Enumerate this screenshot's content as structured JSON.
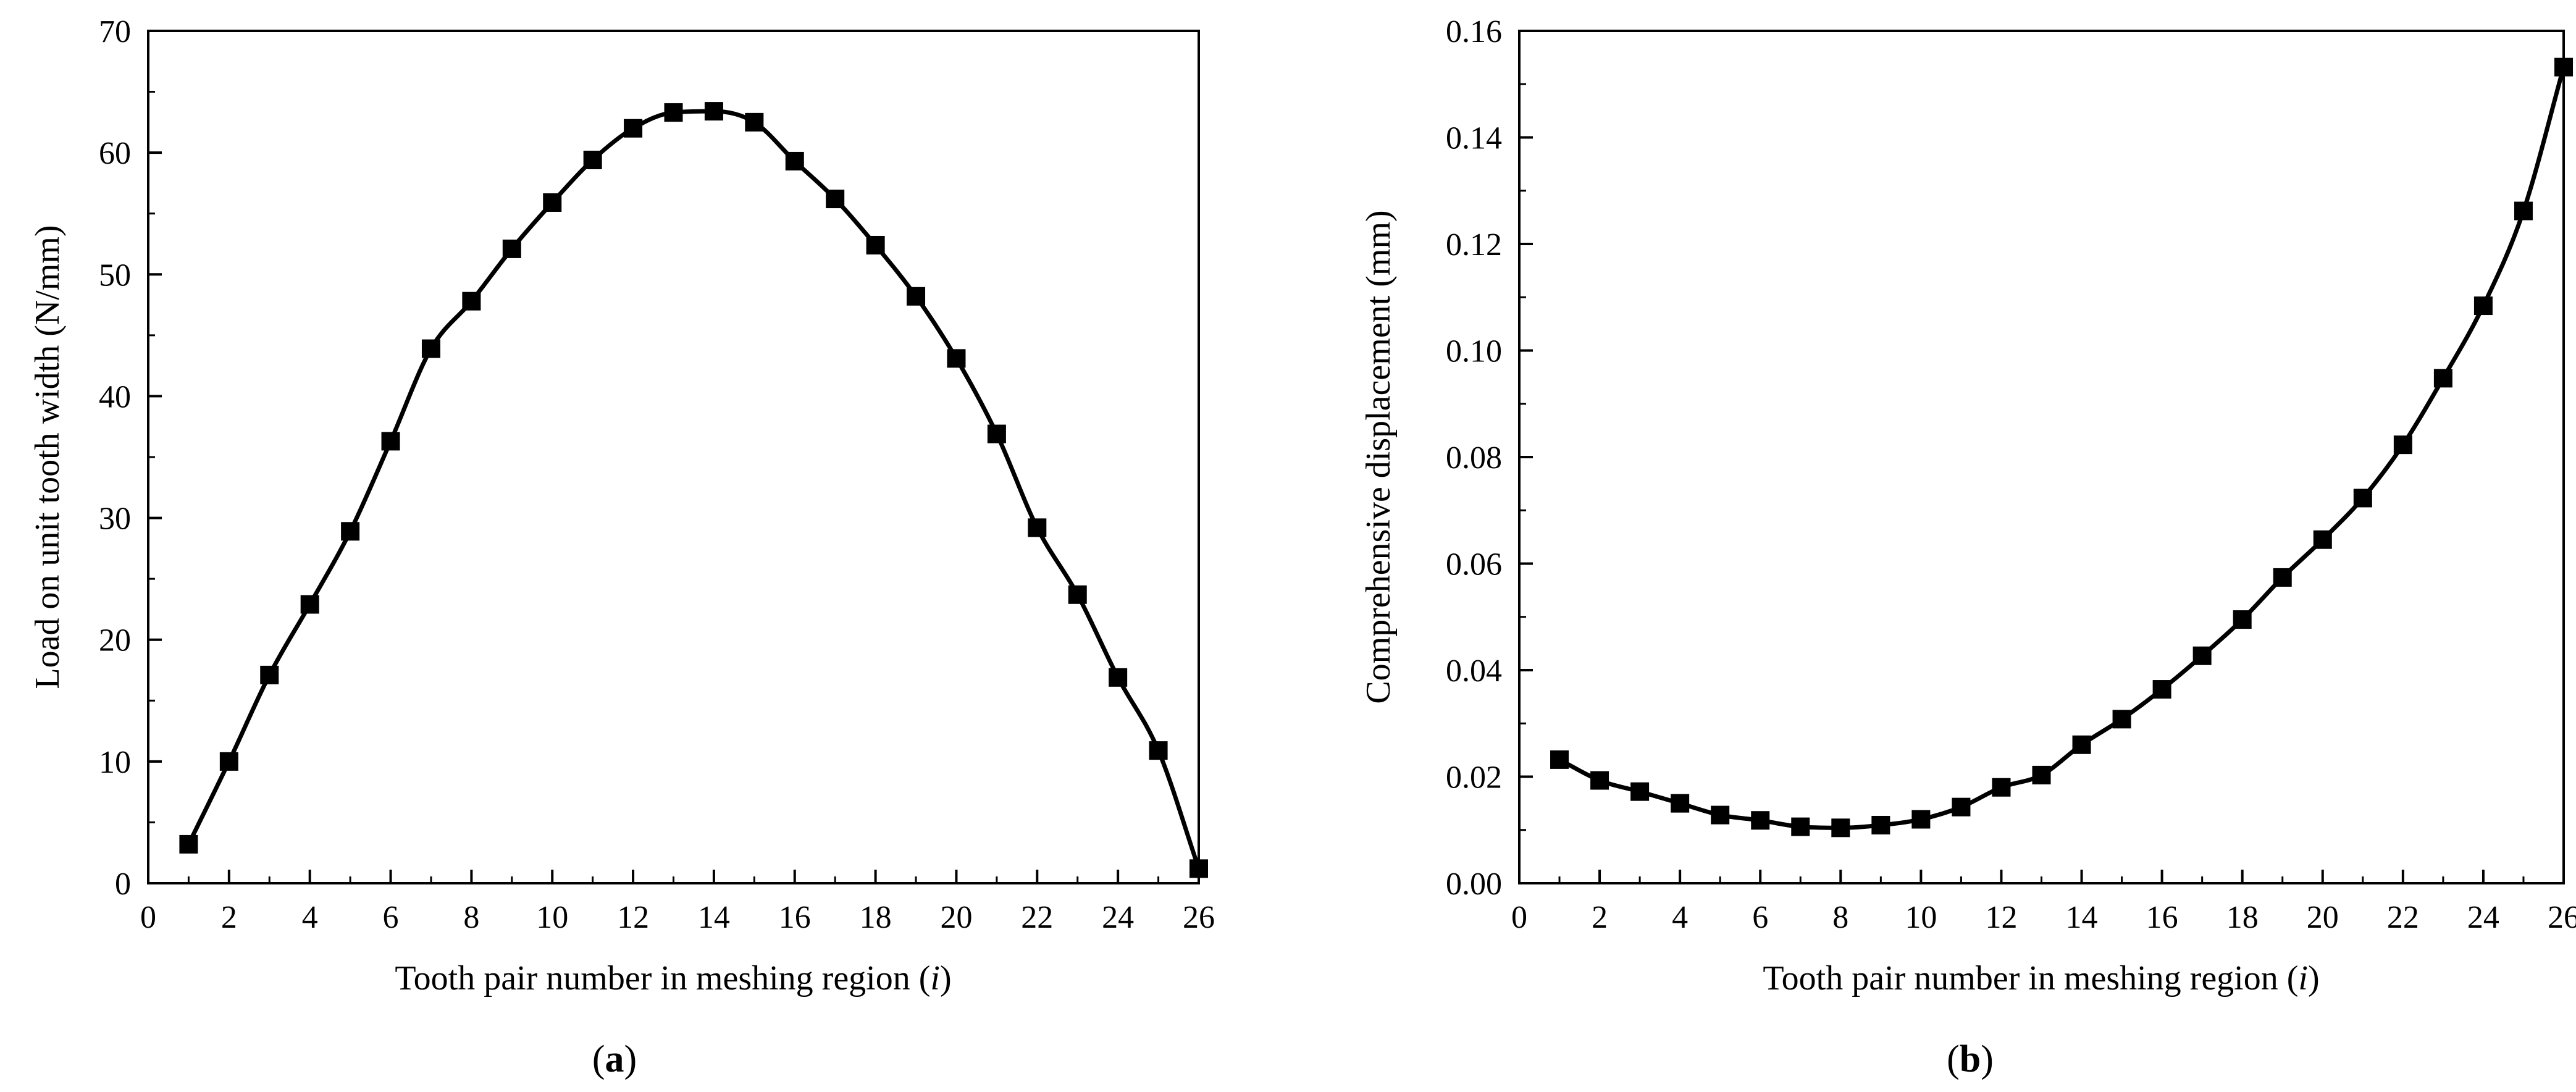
{
  "chart_data": [
    {
      "type": "line",
      "panel_label": "a",
      "title": "",
      "xlabel": "Tooth pair number in meshing region (",
      "xlabel_var": "i",
      "xlabel_end": ")",
      "ylabel": "Load on unit tooth width (N/mm)",
      "xlim": [
        0,
        26
      ],
      "ylim": [
        0,
        70
      ],
      "xticks": [
        "0",
        "2",
        "4",
        "6",
        "8",
        "10",
        "12",
        "14",
        "16",
        "18",
        "20",
        "22",
        "24",
        "26"
      ],
      "yticks": [
        "0",
        "10",
        "20",
        "30",
        "40",
        "50",
        "60",
        "70"
      ],
      "grid": false,
      "series": [
        {
          "name": "Load",
          "marker": "square",
          "x": [
            1,
            2,
            3,
            4,
            5,
            6,
            7,
            8,
            9,
            10,
            11,
            12,
            13,
            14,
            15,
            16,
            17,
            18,
            19,
            20,
            21,
            22,
            23,
            24,
            25,
            26
          ],
          "values": [
            3.2,
            10.0,
            17.1,
            22.9,
            28.9,
            36.3,
            43.9,
            47.8,
            52.1,
            55.9,
            59.4,
            62.0,
            63.3,
            63.4,
            62.5,
            59.3,
            56.2,
            52.4,
            48.2,
            43.1,
            36.9,
            29.2,
            23.7,
            16.9,
            10.9,
            1.2
          ]
        }
      ]
    },
    {
      "type": "line",
      "panel_label": "b",
      "title": "",
      "xlabel": "Tooth pair number in meshing region (",
      "xlabel_var": "i",
      "xlabel_end": ")",
      "ylabel": "Comprehensive displacement (mm)",
      "xlim": [
        0,
        26
      ],
      "ylim": [
        0,
        0.16
      ],
      "xticks": [
        "0",
        "2",
        "4",
        "6",
        "8",
        "10",
        "12",
        "14",
        "16",
        "18",
        "20",
        "22",
        "24",
        "26"
      ],
      "yticks": [
        "0.00",
        "0.02",
        "0.04",
        "0.06",
        "0.08",
        "0.10",
        "0.12",
        "0.14",
        "0.16"
      ],
      "grid": false,
      "series": [
        {
          "name": "Displacement",
          "marker": "square",
          "x": [
            1,
            2,
            3,
            4,
            5,
            6,
            7,
            8,
            9,
            10,
            11,
            12,
            13,
            14,
            15,
            16,
            17,
            18,
            19,
            20,
            21,
            22,
            23,
            24,
            25,
            26
          ],
          "values": [
            0.0232,
            0.0193,
            0.0172,
            0.015,
            0.0128,
            0.0118,
            0.0106,
            0.0104,
            0.0109,
            0.012,
            0.0143,
            0.018,
            0.0203,
            0.026,
            0.0308,
            0.0364,
            0.0427,
            0.0495,
            0.0574,
            0.0645,
            0.0723,
            0.0823,
            0.0948,
            0.1084,
            0.1262,
            0.1532
          ]
        }
      ]
    }
  ]
}
